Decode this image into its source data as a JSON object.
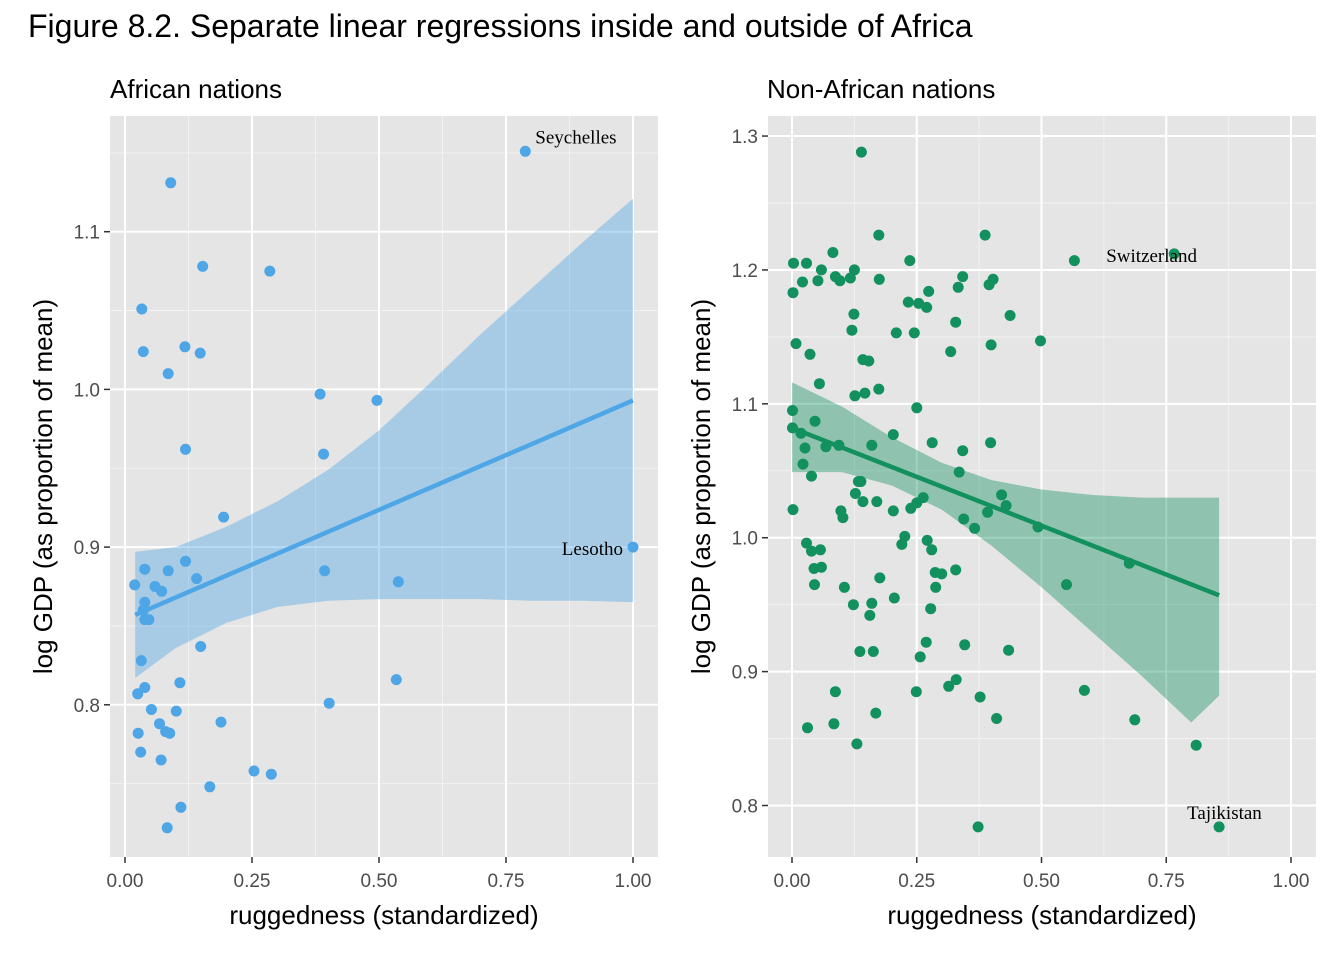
{
  "figure_title": "Figure 8.2. Separate linear regressions inside and outside of Africa",
  "colors": {
    "panel_bg": "#e5e5e5",
    "grid_major": "#ffffff",
    "grid_minor": "#f2f2f2",
    "africa": "#4ea6e6",
    "non_africa": "#12915f"
  },
  "chart_data": [
    {
      "type": "scatter",
      "title": "African nations",
      "xlabel": "ruggedness (standardized)",
      "ylabel": "log GDP (as proportion of mean)",
      "xlim": [
        0,
        1
      ],
      "ylim": [
        0.715,
        1.165
      ],
      "x_ticks": [
        "0.00",
        "0.25",
        "0.50",
        "0.75",
        "1.00"
      ],
      "y_ticks": [
        "0.8",
        "0.9",
        "1.0",
        "1.1"
      ],
      "grid": true,
      "regression": {
        "x": [
          0.02,
          1.0
        ],
        "y": [
          0.857,
          0.993
        ]
      },
      "ribbon": {
        "x": [
          0.02,
          0.1,
          0.2,
          0.3,
          0.4,
          0.5,
          0.6,
          0.7,
          0.8,
          0.9,
          1.0
        ],
        "lower": [
          0.817,
          0.836,
          0.852,
          0.862,
          0.866,
          0.867,
          0.867,
          0.867,
          0.866,
          0.866,
          0.865
        ],
        "upper": [
          0.897,
          0.9,
          0.913,
          0.929,
          0.949,
          0.974,
          1.004,
          1.035,
          1.064,
          1.093,
          1.121
        ]
      },
      "points": [
        {
          "x": 0.09,
          "y": 1.131
        },
        {
          "x": 0.153,
          "y": 1.078
        },
        {
          "x": 0.285,
          "y": 1.075
        },
        {
          "x": 0.033,
          "y": 1.051
        },
        {
          "x": 0.036,
          "y": 1.024
        },
        {
          "x": 0.118,
          "y": 1.027
        },
        {
          "x": 0.148,
          "y": 1.023
        },
        {
          "x": 0.085,
          "y": 1.01
        },
        {
          "x": 0.384,
          "y": 0.997
        },
        {
          "x": 0.496,
          "y": 0.993
        },
        {
          "x": 0.119,
          "y": 0.962
        },
        {
          "x": 0.391,
          "y": 0.959
        },
        {
          "x": 0.194,
          "y": 0.919
        },
        {
          "x": 0.119,
          "y": 0.891
        },
        {
          "x": 0.085,
          "y": 0.885
        },
        {
          "x": 0.039,
          "y": 0.886
        },
        {
          "x": 0.393,
          "y": 0.885
        },
        {
          "x": 0.141,
          "y": 0.88
        },
        {
          "x": 0.538,
          "y": 0.878
        },
        {
          "x": 0.019,
          "y": 0.876
        },
        {
          "x": 0.059,
          "y": 0.875
        },
        {
          "x": 0.072,
          "y": 0.872
        },
        {
          "x": 0.039,
          "y": 0.865
        },
        {
          "x": 0.036,
          "y": 0.86
        },
        {
          "x": 0.039,
          "y": 0.854
        },
        {
          "x": 0.047,
          "y": 0.854
        },
        {
          "x": 0.149,
          "y": 0.837
        },
        {
          "x": 0.032,
          "y": 0.828
        },
        {
          "x": 0.108,
          "y": 0.814
        },
        {
          "x": 0.039,
          "y": 0.811
        },
        {
          "x": 0.025,
          "y": 0.807
        },
        {
          "x": 0.534,
          "y": 0.816
        },
        {
          "x": 0.402,
          "y": 0.801
        },
        {
          "x": 0.052,
          "y": 0.797
        },
        {
          "x": 0.101,
          "y": 0.796
        },
        {
          "x": 0.189,
          "y": 0.789
        },
        {
          "x": 0.068,
          "y": 0.788
        },
        {
          "x": 0.08,
          "y": 0.783
        },
        {
          "x": 0.088,
          "y": 0.782
        },
        {
          "x": 0.026,
          "y": 0.782
        },
        {
          "x": 0.031,
          "y": 0.77
        },
        {
          "x": 0.071,
          "y": 0.765
        },
        {
          "x": 0.254,
          "y": 0.758
        },
        {
          "x": 0.288,
          "y": 0.756
        },
        {
          "x": 0.167,
          "y": 0.748
        },
        {
          "x": 0.11,
          "y": 0.735
        },
        {
          "x": 0.083,
          "y": 0.722
        },
        {
          "x": 0.788,
          "y": 1.151
        },
        {
          "x": 1.0,
          "y": 0.9
        }
      ],
      "labels": [
        {
          "text": "Seychelles",
          "x": 0.788,
          "y": 1.151
        },
        {
          "text": "Lesotho",
          "x": 1.0,
          "y": 0.9
        }
      ]
    },
    {
      "type": "scatter",
      "title": "Non-African nations",
      "xlabel": "ruggedness (standardized)",
      "ylabel": "log GDP (as proportion of mean)",
      "xlim": [
        0,
        1
      ],
      "ylim": [
        0.76,
        1.3
      ],
      "x_ticks": [
        "0.00",
        "0.25",
        "0.50",
        "0.75",
        "1.00"
      ],
      "y_ticks": [
        "0.8",
        "0.9",
        "1.0",
        "1.1",
        "1.2",
        "1.3"
      ],
      "grid": true,
      "regression": {
        "x": [
          0.0,
          0.856
        ],
        "y": [
          1.082,
          0.957
        ]
      },
      "ribbon": {
        "x": [
          0.0,
          0.1,
          0.2,
          0.3,
          0.4,
          0.5,
          0.6,
          0.7,
          0.8,
          0.856
        ],
        "lower": [
          1.049,
          1.049,
          1.039,
          1.021,
          0.994,
          0.963,
          0.93,
          0.897,
          0.862,
          0.882
        ],
        "upper": [
          1.116,
          1.098,
          1.075,
          1.056,
          1.043,
          1.036,
          1.032,
          1.03,
          1.03,
          1.03
        ]
      },
      "points": [
        {
          "x": 0.139,
          "y": 1.288
        },
        {
          "x": 0.174,
          "y": 1.226
        },
        {
          "x": 0.387,
          "y": 1.226
        },
        {
          "x": 0.082,
          "y": 1.213
        },
        {
          "x": 0.566,
          "y": 1.207
        },
        {
          "x": 0.766,
          "y": 1.212
        },
        {
          "x": 0.236,
          "y": 1.207
        },
        {
          "x": 0.003,
          "y": 1.205
        },
        {
          "x": 0.029,
          "y": 1.205
        },
        {
          "x": 0.059,
          "y": 1.2
        },
        {
          "x": 0.125,
          "y": 1.2
        },
        {
          "x": 0.087,
          "y": 1.195
        },
        {
          "x": 0.342,
          "y": 1.195
        },
        {
          "x": 0.096,
          "y": 1.192
        },
        {
          "x": 0.052,
          "y": 1.192
        },
        {
          "x": 0.021,
          "y": 1.191
        },
        {
          "x": 0.117,
          "y": 1.194
        },
        {
          "x": 0.175,
          "y": 1.193
        },
        {
          "x": 0.403,
          "y": 1.193
        },
        {
          "x": 0.395,
          "y": 1.189
        },
        {
          "x": 0.333,
          "y": 1.187
        },
        {
          "x": 0.002,
          "y": 1.183
        },
        {
          "x": 0.274,
          "y": 1.184
        },
        {
          "x": 0.233,
          "y": 1.176
        },
        {
          "x": 0.254,
          "y": 1.175
        },
        {
          "x": 0.27,
          "y": 1.172
        },
        {
          "x": 0.124,
          "y": 1.167
        },
        {
          "x": 0.437,
          "y": 1.166
        },
        {
          "x": 0.328,
          "y": 1.161
        },
        {
          "x": 0.12,
          "y": 1.155
        },
        {
          "x": 0.245,
          "y": 1.153
        },
        {
          "x": 0.209,
          "y": 1.153
        },
        {
          "x": 0.498,
          "y": 1.147
        },
        {
          "x": 0.008,
          "y": 1.145
        },
        {
          "x": 0.399,
          "y": 1.144
        },
        {
          "x": 0.318,
          "y": 1.139
        },
        {
          "x": 0.036,
          "y": 1.137
        },
        {
          "x": 0.142,
          "y": 1.133
        },
        {
          "x": 0.154,
          "y": 1.132
        },
        {
          "x": 0.055,
          "y": 1.115
        },
        {
          "x": 0.174,
          "y": 1.111
        },
        {
          "x": 0.146,
          "y": 1.108
        },
        {
          "x": 0.126,
          "y": 1.106
        },
        {
          "x": 0.25,
          "y": 1.097
        },
        {
          "x": 0.001,
          "y": 1.095
        },
        {
          "x": 0.046,
          "y": 1.087
        },
        {
          "x": 0.001,
          "y": 1.082
        },
        {
          "x": 0.018,
          "y": 1.078
        },
        {
          "x": 0.203,
          "y": 1.077
        },
        {
          "x": 0.281,
          "y": 1.071
        },
        {
          "x": 0.398,
          "y": 1.071
        },
        {
          "x": 0.094,
          "y": 1.069
        },
        {
          "x": 0.16,
          "y": 1.069
        },
        {
          "x": 0.068,
          "y": 1.068
        },
        {
          "x": 0.026,
          "y": 1.067
        },
        {
          "x": 0.342,
          "y": 1.065
        },
        {
          "x": 0.022,
          "y": 1.055
        },
        {
          "x": 0.335,
          "y": 1.049
        },
        {
          "x": 0.039,
          "y": 1.046
        },
        {
          "x": 0.138,
          "y": 1.042
        },
        {
          "x": 0.133,
          "y": 1.042
        },
        {
          "x": 0.127,
          "y": 1.033
        },
        {
          "x": 0.42,
          "y": 1.032
        },
        {
          "x": 0.263,
          "y": 1.03
        },
        {
          "x": 0.17,
          "y": 1.027
        },
        {
          "x": 0.142,
          "y": 1.027
        },
        {
          "x": 0.25,
          "y": 1.026
        },
        {
          "x": 0.429,
          "y": 1.024
        },
        {
          "x": 0.238,
          "y": 1.022
        },
        {
          "x": 0.002,
          "y": 1.021
        },
        {
          "x": 0.203,
          "y": 1.02
        },
        {
          "x": 0.392,
          "y": 1.019
        },
        {
          "x": 0.098,
          "y": 1.02
        },
        {
          "x": 0.102,
          "y": 1.015
        },
        {
          "x": 0.344,
          "y": 1.014
        },
        {
          "x": 0.493,
          "y": 1.008
        },
        {
          "x": 0.366,
          "y": 1.007
        },
        {
          "x": 0.226,
          "y": 1.001
        },
        {
          "x": 0.271,
          "y": 0.998
        },
        {
          "x": 0.029,
          "y": 0.996
        },
        {
          "x": 0.22,
          "y": 0.995
        },
        {
          "x": 0.28,
          "y": 0.991
        },
        {
          "x": 0.057,
          "y": 0.991
        },
        {
          "x": 0.039,
          "y": 0.99
        },
        {
          "x": 0.676,
          "y": 0.981
        },
        {
          "x": 0.044,
          "y": 0.977
        },
        {
          "x": 0.059,
          "y": 0.978
        },
        {
          "x": 0.328,
          "y": 0.976
        },
        {
          "x": 0.287,
          "y": 0.974
        },
        {
          "x": 0.3,
          "y": 0.973
        },
        {
          "x": 0.176,
          "y": 0.97
        },
        {
          "x": 0.55,
          "y": 0.965
        },
        {
          "x": 0.045,
          "y": 0.965
        },
        {
          "x": 0.105,
          "y": 0.963
        },
        {
          "x": 0.288,
          "y": 0.963
        },
        {
          "x": 0.205,
          "y": 0.955
        },
        {
          "x": 0.16,
          "y": 0.951
        },
        {
          "x": 0.123,
          "y": 0.95
        },
        {
          "x": 0.278,
          "y": 0.947
        },
        {
          "x": 0.156,
          "y": 0.942
        },
        {
          "x": 0.269,
          "y": 0.922
        },
        {
          "x": 0.346,
          "y": 0.92
        },
        {
          "x": 0.434,
          "y": 0.916
        },
        {
          "x": 0.136,
          "y": 0.915
        },
        {
          "x": 0.163,
          "y": 0.915
        },
        {
          "x": 0.257,
          "y": 0.911
        },
        {
          "x": 0.329,
          "y": 0.894
        },
        {
          "x": 0.314,
          "y": 0.889
        },
        {
          "x": 0.586,
          "y": 0.886
        },
        {
          "x": 0.087,
          "y": 0.885
        },
        {
          "x": 0.249,
          "y": 0.885
        },
        {
          "x": 0.377,
          "y": 0.881
        },
        {
          "x": 0.168,
          "y": 0.869
        },
        {
          "x": 0.41,
          "y": 0.865
        },
        {
          "x": 0.687,
          "y": 0.864
        },
        {
          "x": 0.084,
          "y": 0.861
        },
        {
          "x": 0.031,
          "y": 0.858
        },
        {
          "x": 0.13,
          "y": 0.846
        },
        {
          "x": 0.81,
          "y": 0.845
        },
        {
          "x": 0.373,
          "y": 0.784
        },
        {
          "x": 0.856,
          "y": 0.784
        }
      ],
      "labels": [
        {
          "text": "Switzerland",
          "x": 0.766,
          "y": 1.212
        },
        {
          "text": "Tajikistan",
          "x": 0.856,
          "y": 0.784
        }
      ]
    }
  ]
}
